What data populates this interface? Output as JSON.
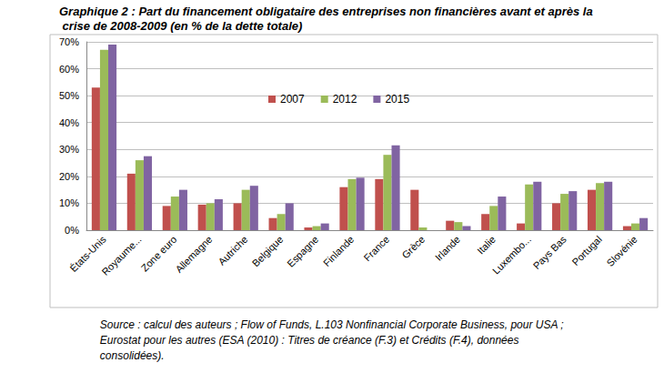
{
  "chart_data": {
    "type": "bar",
    "title": "Graphique 2 : Part du financement obligataire des entreprises non financières avant et après la crise de 2008-2009 (en % de la dette totale)",
    "source": [
      "Source : calcul des auteurs ; Flow of Funds, L.103 Nonfinancial Corporate Business, pour USA ;",
      "Eurostat pour les autres (ESA (2010) : Titres de créance (F.3) et Crédits (F.4), données",
      "consolidées)."
    ],
    "categories": [
      "États-Unis",
      "Royaume...",
      "Zone euro",
      "Allemagne",
      "Autriche",
      "Belgique",
      "Espagne",
      "Finlande",
      "France",
      "Grèce",
      "Irlande",
      "Italie",
      "Luxembo...",
      "Pays Bas",
      "Portugal",
      "Slovénie"
    ],
    "series": [
      {
        "name": "2007",
        "color": "#c0504d",
        "values": [
          53,
          21,
          9,
          9.5,
          10,
          4.5,
          1,
          16,
          19,
          15,
          3.5,
          6,
          2.5,
          10,
          15,
          1.5
        ]
      },
      {
        "name": "2012",
        "color": "#9bbb59",
        "values": [
          67,
          26,
          12.5,
          10,
          15,
          6,
          1.5,
          19,
          28,
          1,
          3,
          9,
          17,
          13.5,
          17.5,
          2.5
        ]
      },
      {
        "name": "2015",
        "color": "#8064a2",
        "values": [
          69,
          27.5,
          15,
          11.5,
          16.5,
          10,
          2.5,
          19.5,
          31.5,
          null,
          1.5,
          12.5,
          18,
          14.5,
          18,
          4.5
        ]
      }
    ],
    "ylim": [
      0,
      70
    ],
    "yticks": [
      {
        "value": 0,
        "label": "0%"
      },
      {
        "value": 10,
        "label": "10%"
      },
      {
        "value": 20,
        "label": "20%"
      },
      {
        "value": 30,
        "label": "30%"
      },
      {
        "value": 40,
        "label": "40%"
      },
      {
        "value": 50,
        "label": "50%"
      },
      {
        "value": 60,
        "label": "60%"
      },
      {
        "value": 70,
        "label": "70%"
      }
    ],
    "grid": true,
    "legend": "top",
    "data_labels": false
  }
}
